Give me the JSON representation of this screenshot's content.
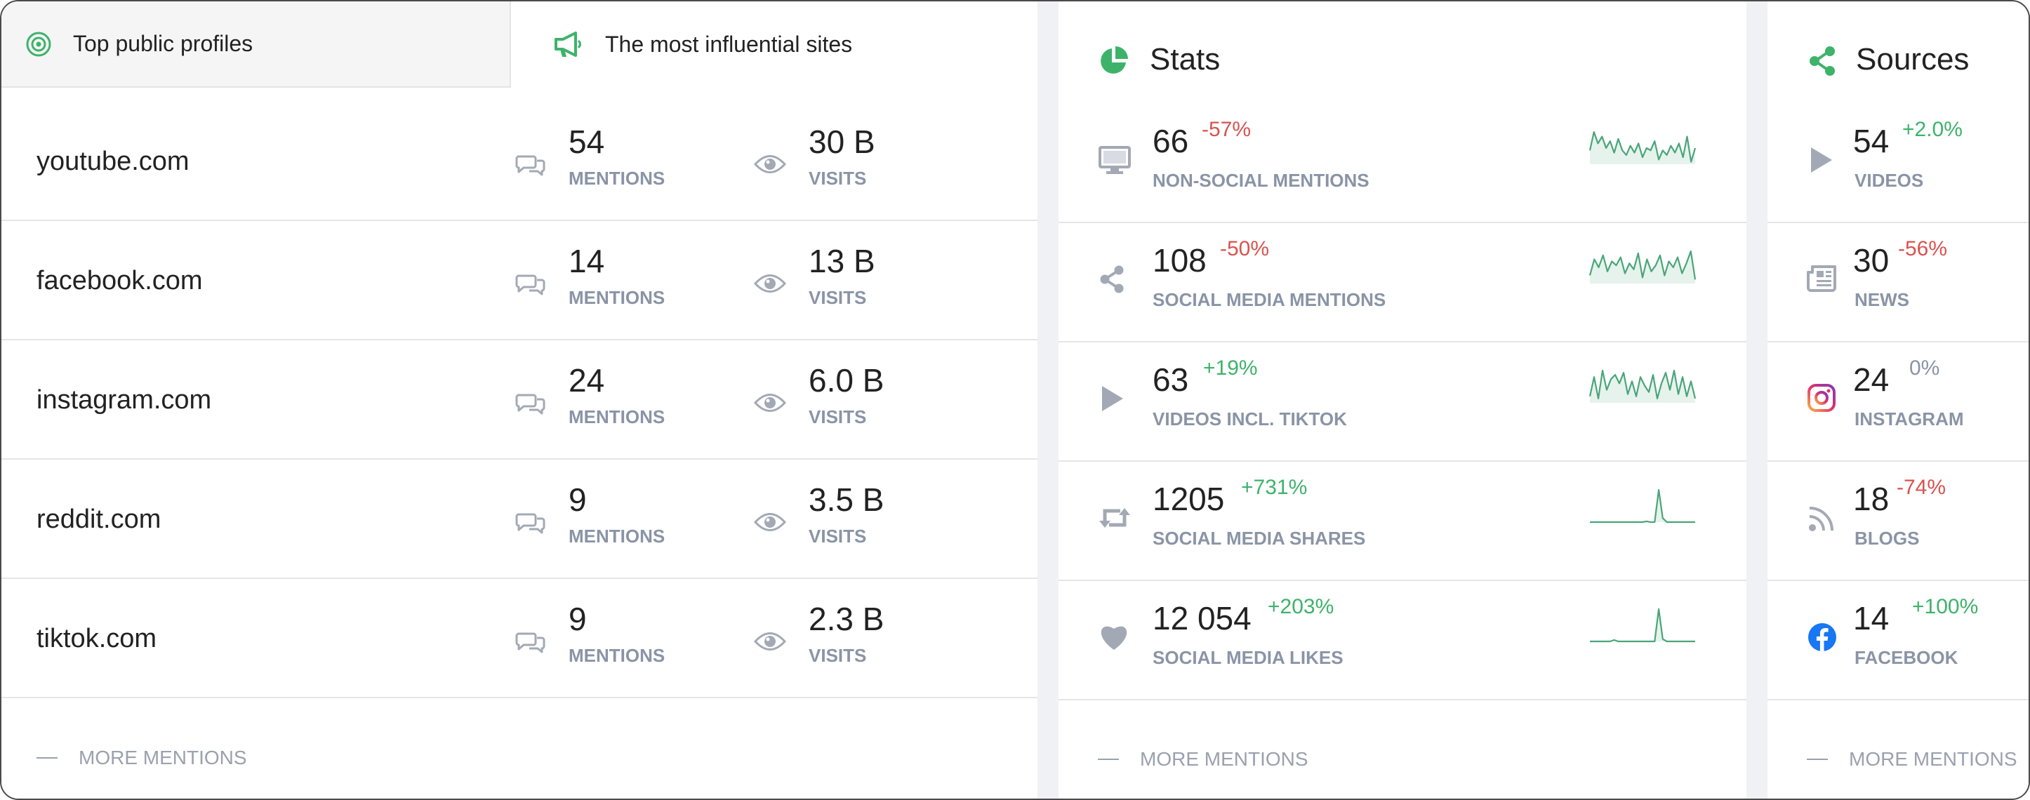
{
  "colors": {
    "accent": "#3db36a",
    "negative": "#d9534f",
    "label": "#8a94a6",
    "sparkline": "#4aa57a",
    "facebook": "#1877f2"
  },
  "sites_panel": {
    "tabs": [
      {
        "label": "Top public profiles",
        "icon": "target-icon",
        "active": false
      },
      {
        "label": "The most influential sites",
        "icon": "megaphone-icon",
        "active": true
      }
    ],
    "rows": [
      {
        "site": "youtube.com",
        "mentions": "54",
        "mentions_label": "MENTIONS",
        "visits": "30 B",
        "visits_label": "VISITS"
      },
      {
        "site": "facebook.com",
        "mentions": "14",
        "mentions_label": "MENTIONS",
        "visits": "13 B",
        "visits_label": "VISITS"
      },
      {
        "site": "instagram.com",
        "mentions": "24",
        "mentions_label": "MENTIONS",
        "visits": "6.0 B",
        "visits_label": "VISITS"
      },
      {
        "site": "reddit.com",
        "mentions": "9",
        "mentions_label": "MENTIONS",
        "visits": "3.5 B",
        "visits_label": "VISITS"
      },
      {
        "site": "tiktok.com",
        "mentions": "9",
        "mentions_label": "MENTIONS",
        "visits": "2.3 B",
        "visits_label": "VISITS"
      }
    ],
    "more_label": "MORE MENTIONS"
  },
  "stats_panel": {
    "title": "Stats",
    "icon": "pie-chart-icon",
    "rows": [
      {
        "icon": "monitor-icon",
        "value": "66",
        "change": "-57%",
        "trend": "negative",
        "label": "NON-SOCIAL MENTIONS",
        "sparkline": [
          6,
          14,
          9,
          12,
          7,
          10,
          5,
          11,
          6,
          4,
          8,
          5,
          9,
          3,
          7,
          6,
          10,
          2,
          6,
          4,
          8,
          5,
          9,
          3,
          12,
          1,
          7
        ]
      },
      {
        "icon": "share-icon",
        "value": "108",
        "change": "-50%",
        "trend": "negative",
        "label": "SOCIAL MEDIA MENTIONS",
        "sparkline": [
          4,
          12,
          8,
          14,
          6,
          11,
          9,
          13,
          5,
          10,
          7,
          15,
          3,
          12,
          6,
          9,
          14,
          4,
          11,
          8,
          13,
          5,
          10,
          16,
          2
        ]
      },
      {
        "icon": "play-icon",
        "value": "63",
        "change": "+19%",
        "trend": "positive",
        "label": "VIDEOS INCL. TIKTOK",
        "sparkline": [
          3,
          12,
          2,
          15,
          6,
          11,
          13,
          9,
          14,
          4,
          10,
          3,
          12,
          8,
          5,
          13,
          2,
          9,
          14,
          6,
          15,
          4,
          12,
          3,
          10,
          2
        ]
      },
      {
        "icon": "retweet-icon",
        "value": "1205",
        "change": "+731%",
        "trend": "positive",
        "label": "SOCIAL MEDIA SHARES",
        "sparkline": [
          0,
          0,
          0,
          0,
          0,
          0,
          0,
          0,
          0,
          0,
          0,
          0,
          0,
          0,
          0.4,
          0,
          0,
          16,
          2,
          0,
          0,
          0,
          0,
          0,
          0,
          0,
          0
        ]
      },
      {
        "icon": "heart-icon",
        "value": "12 054",
        "change": "+203%",
        "trend": "positive",
        "label": "SOCIAL MEDIA LIKES",
        "sparkline": [
          0,
          0,
          0,
          0,
          0,
          0,
          0.6,
          0,
          0,
          0,
          0,
          0,
          0,
          0,
          0,
          0,
          0,
          14,
          1,
          0,
          0,
          0,
          0,
          0,
          0,
          0,
          0
        ]
      }
    ],
    "more_label": "MORE MENTIONS"
  },
  "sources_panel": {
    "title": "Sources",
    "icon": "share-icon",
    "rows": [
      {
        "icon": "play-icon",
        "value": "54",
        "change": "+2.0%",
        "trend": "positive",
        "label": "VIDEOS"
      },
      {
        "icon": "newspaper-icon",
        "value": "30",
        "change": "-56%",
        "trend": "negative",
        "label": "NEWS"
      },
      {
        "icon": "instagram-icon",
        "value": "24",
        "change": "0%",
        "trend": "neutral",
        "label": "INSTAGRAM"
      },
      {
        "icon": "rss-icon",
        "value": "18",
        "change": "-74%",
        "trend": "negative",
        "label": "BLOGS"
      },
      {
        "icon": "facebook-icon",
        "value": "14",
        "change": "+100%",
        "trend": "positive",
        "label": "FACEBOOK"
      }
    ],
    "more_label": "MORE MENTIONS"
  }
}
